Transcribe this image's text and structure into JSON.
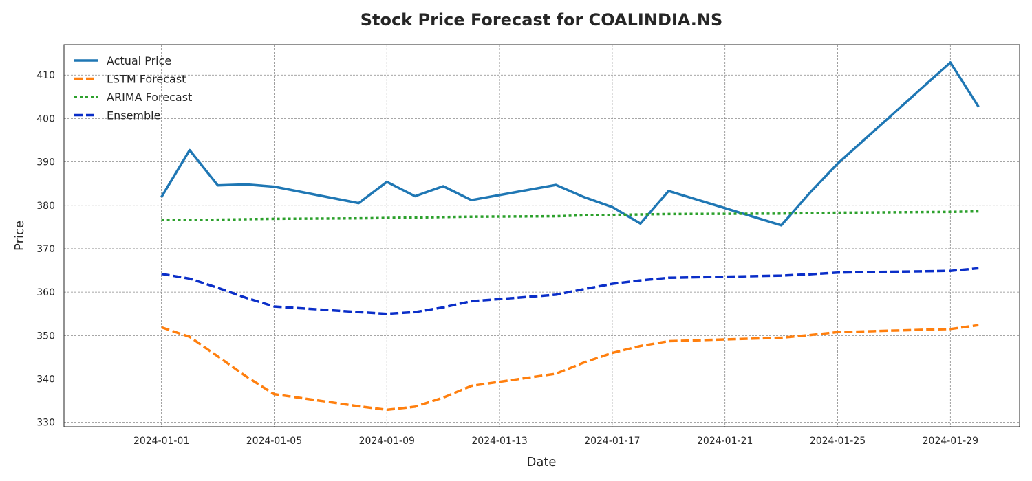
{
  "chart_data": {
    "type": "line",
    "title": "Stock Price Forecast for COALINDIA.NS",
    "xlabel": "Date",
    "ylabel": "Price",
    "ylim": [
      329,
      417
    ],
    "xlim": [
      "2023-12-28T13:00",
      "2024-01-31T11:00"
    ],
    "grid": true,
    "legend_position": "top-left",
    "x_ticks": [
      "2024-01-01",
      "2024-01-05",
      "2024-01-09",
      "2024-01-13",
      "2024-01-17",
      "2024-01-21",
      "2024-01-25",
      "2024-01-29"
    ],
    "y_ticks": [
      330,
      340,
      350,
      360,
      370,
      380,
      390,
      400,
      410
    ],
    "series": [
      {
        "name": "Actual Price",
        "color": "#1f77b4",
        "style": "solid",
        "points": [
          [
            "2024-01-01",
            381.9
          ],
          [
            "2024-01-02",
            392.7
          ],
          [
            "2024-01-03",
            384.6
          ],
          [
            "2024-01-04",
            384.8
          ],
          [
            "2024-01-05",
            384.3
          ],
          [
            "2024-01-08",
            380.5
          ],
          [
            "2024-01-09",
            385.4
          ],
          [
            "2024-01-10",
            382.1
          ],
          [
            "2024-01-11",
            384.4
          ],
          [
            "2024-01-12",
            381.2
          ],
          [
            "2024-01-15",
            384.7
          ],
          [
            "2024-01-16",
            381.9
          ],
          [
            "2024-01-17",
            379.6
          ],
          [
            "2024-01-18",
            375.8
          ],
          [
            "2024-01-19",
            383.3
          ],
          [
            "2024-01-23",
            375.4
          ],
          [
            "2024-01-24",
            382.8
          ],
          [
            "2024-01-25",
            389.6
          ],
          [
            "2024-01-29",
            412.9
          ],
          [
            "2024-01-30",
            402.7
          ]
        ]
      },
      {
        "name": "LSTM Forecast",
        "color": "#ff7f0e",
        "style": "dashed",
        "points": [
          [
            "2024-01-01",
            351.9
          ],
          [
            "2024-01-02",
            349.7
          ],
          [
            "2024-01-03",
            345.2
          ],
          [
            "2024-01-04",
            340.6
          ],
          [
            "2024-01-05",
            336.5
          ],
          [
            "2024-01-08",
            333.7
          ],
          [
            "2024-01-09",
            332.9
          ],
          [
            "2024-01-10",
            333.6
          ],
          [
            "2024-01-11",
            335.7
          ],
          [
            "2024-01-12",
            338.4
          ],
          [
            "2024-01-15",
            341.2
          ],
          [
            "2024-01-16",
            343.8
          ],
          [
            "2024-01-17",
            346.0
          ],
          [
            "2024-01-18",
            347.6
          ],
          [
            "2024-01-19",
            348.7
          ],
          [
            "2024-01-23",
            349.5
          ],
          [
            "2024-01-24",
            350.1
          ],
          [
            "2024-01-25",
            350.8
          ],
          [
            "2024-01-29",
            351.5
          ],
          [
            "2024-01-30",
            352.4
          ]
        ]
      },
      {
        "name": "ARIMA Forecast",
        "color": "#2ca02c",
        "style": "dotted",
        "points": [
          [
            "2024-01-01",
            376.6
          ],
          [
            "2024-01-02",
            376.6
          ],
          [
            "2024-01-03",
            376.7
          ],
          [
            "2024-01-04",
            376.8
          ],
          [
            "2024-01-05",
            376.9
          ],
          [
            "2024-01-08",
            377.0
          ],
          [
            "2024-01-09",
            377.1
          ],
          [
            "2024-01-10",
            377.2
          ],
          [
            "2024-01-11",
            377.3
          ],
          [
            "2024-01-12",
            377.4
          ],
          [
            "2024-01-15",
            377.5
          ],
          [
            "2024-01-16",
            377.7
          ],
          [
            "2024-01-17",
            377.8
          ],
          [
            "2024-01-18",
            377.9
          ],
          [
            "2024-01-19",
            378.0
          ],
          [
            "2024-01-23",
            378.1
          ],
          [
            "2024-01-24",
            378.2
          ],
          [
            "2024-01-25",
            378.3
          ],
          [
            "2024-01-29",
            378.5
          ],
          [
            "2024-01-30",
            378.6
          ]
        ]
      },
      {
        "name": "Ensemble",
        "color": "#0a2ec8",
        "style": "dashed",
        "points": [
          [
            "2024-01-01",
            364.2
          ],
          [
            "2024-01-02",
            363.1
          ],
          [
            "2024-01-03",
            361.0
          ],
          [
            "2024-01-04",
            358.7
          ],
          [
            "2024-01-05",
            356.7
          ],
          [
            "2024-01-08",
            355.4
          ],
          [
            "2024-01-09",
            355.0
          ],
          [
            "2024-01-10",
            355.4
          ],
          [
            "2024-01-11",
            356.5
          ],
          [
            "2024-01-12",
            357.9
          ],
          [
            "2024-01-15",
            359.4
          ],
          [
            "2024-01-16",
            360.7
          ],
          [
            "2024-01-17",
            361.9
          ],
          [
            "2024-01-18",
            362.7
          ],
          [
            "2024-01-19",
            363.3
          ],
          [
            "2024-01-23",
            363.8
          ],
          [
            "2024-01-24",
            364.1
          ],
          [
            "2024-01-25",
            364.5
          ],
          [
            "2024-01-29",
            364.9
          ],
          [
            "2024-01-30",
            365.5
          ]
        ]
      }
    ]
  }
}
